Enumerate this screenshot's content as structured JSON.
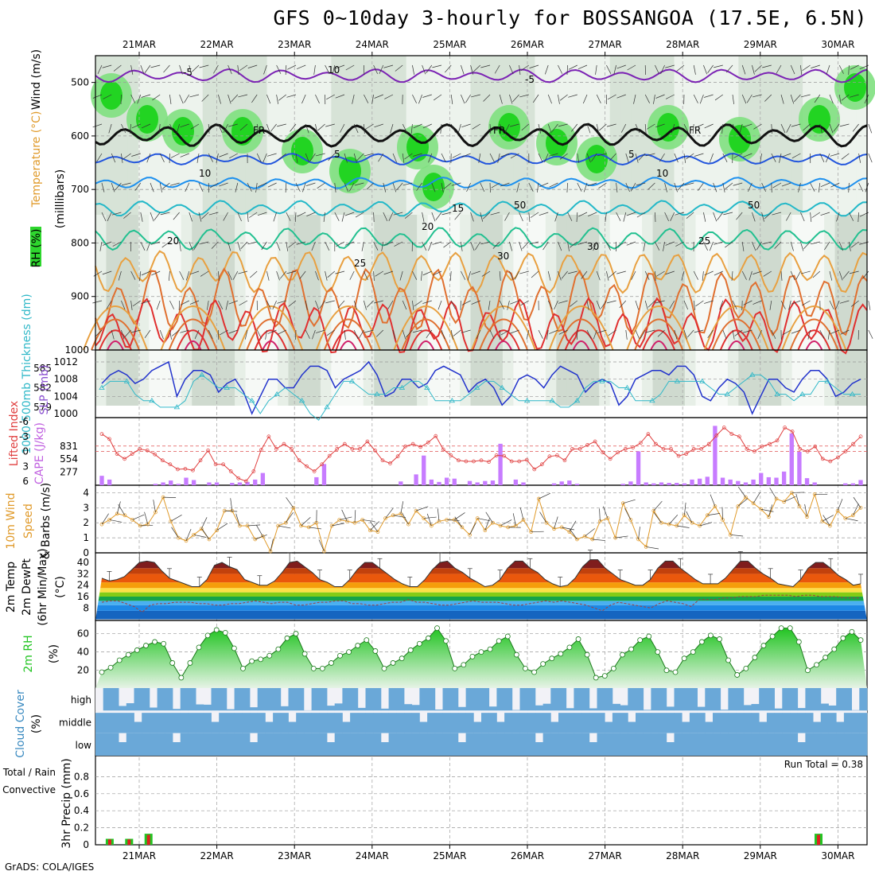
{
  "title": "GFS 0~10day 3-hourly for BOSSANGOA (17.5E, 6.5N)",
  "credit": "GrADS: COLA/IGES",
  "colors": {
    "rh_green": "#2ed62e",
    "temp_cold": "#7b22b4",
    "temp_blue": "#2255dd",
    "cape_bar": "#c77cff",
    "slp_line": "#2233cc",
    "thick_line": "#30b8c8",
    "wind_line": "#e09a2a",
    "rh_fill": "#3bc03b",
    "cloud": "#6aa8d8",
    "precip_green": "#22c422",
    "precip_red": "#e02020"
  },
  "chart_data": [
    {
      "type": "heatmap",
      "name_labels": [
        "RH (%)",
        "Temperature (°C)",
        "Wind (m/s)"
      ],
      "ylabel": "(milllibars)",
      "x_dates": [
        "21MAR",
        "22MAR",
        "23MAR",
        "24MAR",
        "25MAR",
        "26MAR",
        "27MAR",
        "28MAR",
        "29MAR",
        "30MAR"
      ],
      "y_ticks": [
        500,
        600,
        700,
        800,
        900,
        1000
      ],
      "ylim": [
        1000,
        450
      ],
      "freezing_label": "FR",
      "isotherm_labels": [
        "-5",
        "-5",
        "5",
        "5",
        "10",
        "10",
        "15",
        "20",
        "20",
        "25",
        "25",
        "30"
      ],
      "rh_labels": [
        "10",
        "50",
        "50",
        "30"
      ]
    },
    {
      "type": "line",
      "ylabel_left": "1000-500mb Thickness (dm)",
      "ylabel_right": "SLP (mb)",
      "left_ticks": [
        579,
        582,
        585
      ],
      "right_ticks": [
        1000,
        1004,
        1008,
        1012
      ],
      "series": [
        {
          "name": "SLP (mb)",
          "values": [
            1007,
            1009,
            1010,
            1009,
            1007,
            1008,
            1010,
            1011,
            1012,
            1004,
            1008,
            1010,
            1010,
            1009,
            1005,
            1007,
            1008,
            1005,
            1000,
            1004,
            1008,
            1008,
            1006,
            1006,
            1009,
            1011,
            1011,
            1010,
            1006,
            1008,
            1009,
            1010,
            1012,
            1009,
            1004,
            1005,
            1008,
            1008,
            1006,
            1007,
            1010,
            1011,
            1010,
            1009,
            1005,
            1007,
            1008,
            1006,
            1002,
            1004,
            1008,
            1009,
            1008,
            1006,
            1009,
            1011,
            1010,
            1009,
            1005,
            1007,
            1008,
            1007,
            1002,
            1004,
            1008,
            1009,
            1010,
            1010,
            1009,
            1011,
            1011,
            1009,
            1004,
            1003,
            1006,
            1008,
            1007,
            1005,
            1000,
            1004,
            1008,
            1008,
            1006,
            1005,
            1008,
            1010,
            1010,
            1008,
            1004,
            1005,
            1007,
            1008
          ]
        },
        {
          "name": "1000-500mb Thickness",
          "values": [
            582,
            583,
            583,
            583,
            581,
            580,
            580,
            579,
            579,
            579,
            580,
            583,
            584,
            583,
            582,
            582,
            582,
            581,
            580,
            578,
            580,
            581,
            582,
            581,
            580,
            578,
            577,
            579,
            581,
            583,
            583,
            582,
            581,
            581,
            581,
            582,
            582,
            583,
            583,
            582,
            580,
            580,
            580,
            580,
            581,
            582,
            583,
            583,
            582,
            581,
            580,
            580,
            580,
            580,
            580,
            579,
            579,
            580,
            582,
            583,
            583,
            583,
            582,
            582,
            580,
            580,
            580,
            581,
            583,
            583,
            583,
            583,
            583,
            582,
            581,
            581,
            582,
            583,
            584,
            584,
            583,
            581,
            581,
            580,
            581,
            581,
            583,
            583,
            582,
            581,
            581,
            581
          ]
        }
      ]
    },
    {
      "type": "bar",
      "ylabel_left": "Lifted Index",
      "ylabel_right": "CAPE (J/kg)",
      "left_ticks": [
        -6,
        -3,
        0,
        3,
        6
      ],
      "right_ticks": [
        277,
        554,
        831
      ],
      "cape_values": [
        200,
        120,
        0,
        0,
        0,
        0,
        0,
        30,
        60,
        100,
        30,
        160,
        110,
        0,
        60,
        60,
        0,
        50,
        60,
        70,
        120,
        260,
        0,
        0,
        0,
        0,
        0,
        0,
        170,
        450,
        0,
        0,
        0,
        0,
        0,
        0,
        0,
        0,
        0,
        80,
        0,
        230,
        630,
        120,
        70,
        160,
        140,
        0,
        90,
        60,
        90,
        100,
        880,
        0,
        120,
        60,
        0,
        0,
        0,
        40,
        80,
        100,
        30,
        0,
        0,
        0,
        0,
        0,
        30,
        80,
        720,
        60,
        40,
        60,
        50,
        50,
        40,
        120,
        140,
        180,
        1260,
        160,
        120,
        90,
        60,
        120,
        260,
        170,
        160,
        290,
        1100,
        710,
        150,
        60,
        0,
        0,
        0,
        40,
        40,
        110
      ],
      "li_values": [
        -3.5,
        -2.5,
        0.5,
        1.5,
        0.5,
        -0.5,
        -0.2,
        0.6,
        1.8,
        2.6,
        3.6,
        3.5,
        3.8,
        1.8,
        -0.2,
        2.6,
        2.6,
        4,
        5.4,
        6,
        4,
        -0.3,
        -3,
        -0.5,
        -1.5,
        -0.5,
        1.8,
        3,
        4,
        2.6,
        0.9,
        -0.5,
        -1.5,
        -0.5,
        -0.5,
        -2,
        -0.2,
        1.8,
        2.4,
        1,
        -1,
        -1.5,
        -0.9,
        -1.8,
        -3.1,
        -0.4,
        0.8,
        1.8,
        2,
        2,
        1.8,
        2.1,
        0.8,
        0.9,
        2,
        2,
        1.7,
        3.6,
        2.6,
        1,
        0.8,
        1.8,
        -0.5,
        -0.5,
        -1.3,
        -2,
        0.2,
        1.5,
        0.2,
        -0.5,
        -0.8,
        -1.7,
        -3.5,
        -1.5,
        -0.5,
        -0.5,
        0.9,
        0.5,
        -0.5,
        -0.5,
        -1.5,
        -3.2,
        -4.8,
        -3.5,
        -3,
        -0.5,
        0,
        -1,
        -1.5,
        -2.2,
        -4.8,
        -4,
        -0.5,
        0,
        -1,
        1.5,
        2,
        1.2,
        0,
        -1.5,
        -3
      ]
    },
    {
      "type": "line",
      "ylabel": "10m Wind Speed & Barbs (m/s)",
      "y_ticks": [
        0,
        1,
        2,
        3,
        4
      ],
      "values": [
        1.9,
        2.2,
        2.6,
        2.5,
        2.2,
        1.8,
        1.9,
        2.7,
        3.7,
        2.1,
        1.0,
        0.8,
        1.2,
        1.6,
        0.9,
        1.5,
        2.8,
        2.8,
        1.8,
        1.8,
        0.9,
        1.1,
        0.1,
        1.8,
        2.0,
        3.0,
        1.8,
        1.7,
        2.0,
        0.1,
        1.8,
        2.2,
        2.1,
        2.0,
        2.2,
        1.5,
        1.4,
        2.3,
        2.5,
        2.6,
        1.9,
        2.8,
        2.3,
        1.8,
        2.1,
        2.2,
        2.2,
        1.7,
        1.2,
        2.3,
        1.5,
        2.0,
        1.8,
        1.7,
        1.8,
        2.2,
        1.4,
        3.6,
        2.0,
        1.6,
        1.7,
        1.4,
        0.9,
        1.1,
        0.9,
        2.1,
        2.3,
        1.0,
        3.3,
        2.2,
        0.9,
        0.4,
        2.8,
        2.0,
        1.9,
        1.8,
        2.5,
        2.0,
        1.8,
        2.5,
        3.1,
        2.2,
        1.2,
        3.1,
        3.7,
        3.3,
        2.9,
        2.4,
        3.6,
        3.4,
        4.0,
        3.1,
        2.4,
        3.9,
        2.1,
        1.8,
        2.8,
        2.3,
        2.5,
        3.0
      ]
    },
    {
      "type": "area",
      "ylabel": "2m Temp 2m DewPt (6hr Min/Max) (°C)",
      "y_ticks": [
        8,
        16,
        24,
        32,
        40
      ],
      "temp_values": [
        29,
        27,
        28,
        30,
        35,
        40,
        41,
        40,
        34,
        29,
        27,
        25,
        23,
        23,
        28,
        38,
        40,
        37,
        35,
        28,
        26,
        24,
        24,
        27,
        33,
        40,
        41,
        37,
        33,
        28,
        26,
        23,
        23,
        28,
        35,
        40,
        40,
        36,
        32,
        28,
        25,
        23,
        23,
        28,
        35,
        40,
        41,
        36,
        33,
        29,
        26,
        23,
        24,
        28,
        36,
        41,
        41,
        36,
        33,
        28,
        25,
        23,
        24,
        29,
        37,
        42,
        42,
        36,
        32,
        28,
        26,
        24,
        24,
        28,
        36,
        41,
        41,
        36,
        32,
        28,
        25,
        25,
        25,
        29,
        35,
        41,
        41,
        36,
        32,
        29,
        25,
        24,
        23,
        28,
        36,
        40,
        40,
        36,
        31,
        28,
        24,
        25
      ],
      "dew_values": [
        12,
        13,
        13,
        11,
        9,
        5,
        10,
        11,
        11,
        12,
        12,
        12,
        11,
        11,
        10,
        10,
        11,
        11,
        12,
        13,
        12,
        11,
        12,
        12,
        10,
        10,
        11,
        12,
        12,
        13,
        13,
        11,
        11,
        10,
        10,
        11,
        12,
        12,
        14,
        12,
        12,
        11,
        10,
        10,
        11,
        12,
        13,
        12,
        12,
        12,
        11,
        10,
        10,
        11,
        12,
        13,
        12,
        13,
        12,
        11,
        10,
        8,
        6,
        10,
        12,
        11,
        10,
        9,
        8,
        11,
        13,
        12,
        11,
        9,
        14,
        14,
        14,
        15,
        15,
        16,
        16,
        16,
        17,
        17,
        17,
        17,
        16,
        17,
        17,
        16,
        16,
        16,
        15,
        15,
        15
      ]
    },
    {
      "type": "area",
      "ylabel": "2m RH (%)",
      "y_ticks": [
        20,
        40,
        60
      ],
      "values": [
        18,
        23,
        31,
        37,
        42,
        47,
        51,
        49,
        28,
        12,
        28,
        45,
        58,
        64,
        61,
        44,
        22,
        30,
        32,
        36,
        43,
        55,
        60,
        38,
        22,
        22,
        28,
        36,
        40,
        47,
        53,
        41,
        22,
        28,
        33,
        42,
        49,
        55,
        66,
        52,
        22,
        26,
        35,
        40,
        43,
        52,
        57,
        37,
        22,
        18,
        27,
        33,
        38,
        45,
        54,
        37,
        12,
        14,
        22,
        37,
        43,
        53,
        57,
        40,
        20,
        18,
        33,
        40,
        51,
        58,
        54,
        31,
        15,
        22,
        34,
        47,
        57,
        66,
        66,
        51,
        20,
        26,
        34,
        43,
        55,
        62,
        53
      ]
    },
    {
      "type": "heatmap",
      "ylabel": "Cloud Cover (%)",
      "levels": [
        "high",
        "middle",
        "low"
      ]
    },
    {
      "type": "bar",
      "ylabel": "3hr Precip (mm)",
      "series_names": [
        "Total / Rain",
        "Convective"
      ],
      "y_ticks": [
        0,
        0.2,
        0.4,
        0.6,
        0.8
      ],
      "annotation": "Run Total = 0.38",
      "bars": [
        {
          "x": 0.12,
          "value": 0.07
        },
        {
          "x": 0.37,
          "value": 0.07
        },
        {
          "x": 0.62,
          "value": 0.13
        },
        {
          "x": 9.25,
          "value": 0.13
        }
      ]
    }
  ]
}
